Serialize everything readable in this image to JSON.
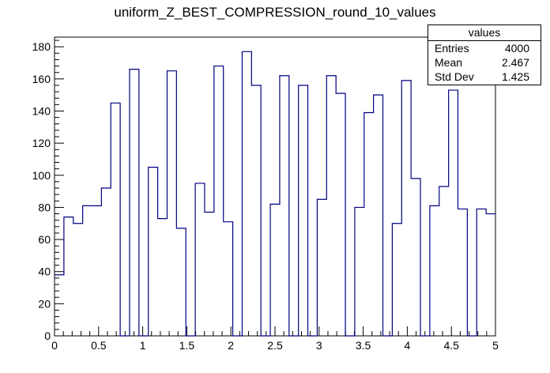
{
  "chart_data": {
    "type": "bar",
    "title": "uniform_Z_BEST_COMPRESSION_round_10_values",
    "xlabel": "",
    "ylabel": "",
    "xlim": [
      0,
      5
    ],
    "ylim": [
      0,
      186
    ],
    "bin_width": 0.1,
    "x_ticks": [
      "0",
      "0.5",
      "1",
      "1.5",
      "2",
      "2.5",
      "3",
      "3.5",
      "4",
      "4.5",
      "5"
    ],
    "y_ticks": [
      "0",
      "20",
      "40",
      "60",
      "80",
      "100",
      "120",
      "140",
      "160",
      "180"
    ],
    "values": [
      38,
      74,
      70,
      81,
      81,
      92,
      145,
      0,
      166,
      0,
      105,
      73,
      165,
      67,
      0,
      95,
      77,
      168,
      71,
      0,
      177,
      156,
      0,
      82,
      162,
      0,
      156,
      0,
      85,
      162,
      151,
      0,
      80,
      139,
      150,
      0,
      70,
      159,
      98,
      0,
      81,
      93,
      153,
      79,
      0,
      79,
      76
    ],
    "series_color": "#000080",
    "grid": false,
    "legend": "top-right"
  },
  "stats": {
    "name": "values",
    "rows": [
      {
        "label": "Entries",
        "value": "4000"
      },
      {
        "label": "Mean",
        "value": "2.467"
      },
      {
        "label": "Std Dev",
        "value": "1.425"
      }
    ]
  }
}
